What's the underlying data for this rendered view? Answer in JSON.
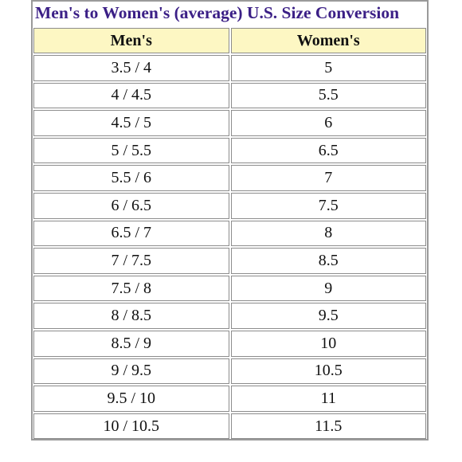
{
  "table": {
    "caption": "Men's to Women's (average) U.S. Size Conversion",
    "headers": [
      "Men's",
      "Women's"
    ],
    "rows": [
      [
        "3.5 / 4",
        "5"
      ],
      [
        "4 / 4.5",
        "5.5"
      ],
      [
        "4.5 / 5",
        "6"
      ],
      [
        "5 / 5.5",
        "6.5"
      ],
      [
        "5.5 / 6",
        "7"
      ],
      [
        "6 / 6.5",
        "7.5"
      ],
      [
        "6.5 / 7",
        "8"
      ],
      [
        "7 / 7.5",
        "8.5"
      ],
      [
        "7.5 / 8",
        "9"
      ],
      [
        "8 / 8.5",
        "9.5"
      ],
      [
        "8.5 / 9",
        "10"
      ],
      [
        "9 / 9.5",
        "10.5"
      ],
      [
        "9.5 / 10",
        "11"
      ],
      [
        "10 / 10.5",
        "11.5"
      ]
    ]
  },
  "colors": {
    "caption_text": "#3b1f86",
    "header_bg": "#fdf7c3",
    "border": "#8c8c8c"
  }
}
